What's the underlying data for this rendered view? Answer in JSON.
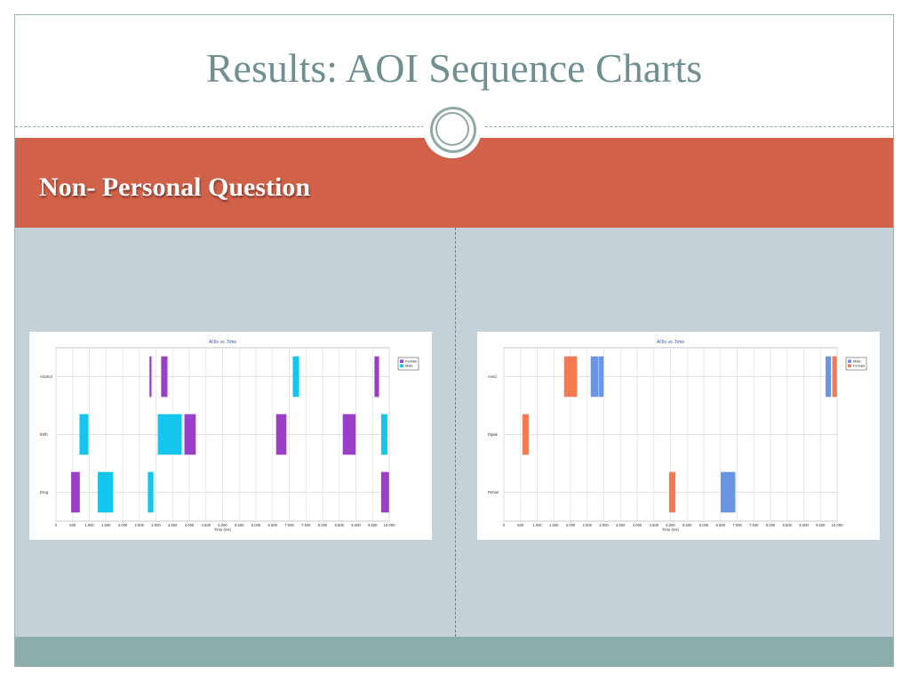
{
  "slide": {
    "title": "Results: AOI Sequence Charts",
    "section": "Non- Personal Question"
  },
  "colors": {
    "banner": "#d2614a",
    "title": "#6f8f92",
    "content_bg": "#c5d1d9",
    "footer": "#8badab",
    "Female_left": "#9b3fc8",
    "Male_left": "#14c6ee",
    "Male_right": "#6a95e3",
    "Female_right": "#f47a52"
  },
  "chart_data": [
    {
      "type": "bar",
      "title": "AOIs vs. Time",
      "xlabel": "Time (ms)",
      "ylabel": "",
      "xlim": [
        0,
        10000
      ],
      "xticks": [
        "0",
        "500",
        "1,000",
        "1,500",
        "2,000",
        "2,500",
        "3,000",
        "3,500",
        "4,000",
        "4,500",
        "5,000",
        "5,500",
        "6,000",
        "6,500",
        "7,000",
        "7,500",
        "8,000",
        "8,500",
        "9,000",
        "9,500",
        "10,000"
      ],
      "categories": [
        "Alcohol",
        "Birth",
        "Drug"
      ],
      "legend": {
        "position": "top-right",
        "entries": [
          "Female",
          "Male"
        ]
      },
      "grid": true,
      "series": [
        {
          "name": "Female",
          "color": "#9b3fc8",
          "segments": [
            {
              "aoi": "Alcohol",
              "start": 2800,
              "end": 2870
            },
            {
              "aoi": "Alcohol",
              "start": 3150,
              "end": 3350
            },
            {
              "aoi": "Alcohol",
              "start": 9550,
              "end": 9700
            },
            {
              "aoi": "Birth",
              "start": 3850,
              "end": 4200
            },
            {
              "aoi": "Birth",
              "start": 6600,
              "end": 6920
            },
            {
              "aoi": "Birth",
              "start": 8600,
              "end": 9000
            },
            {
              "aoi": "Drug",
              "start": 450,
              "end": 720
            },
            {
              "aoi": "Drug",
              "start": 9750,
              "end": 10000
            }
          ]
        },
        {
          "name": "Male",
          "color": "#14c6ee",
          "segments": [
            {
              "aoi": "Alcohol",
              "start": 7100,
              "end": 7300
            },
            {
              "aoi": "Birth",
              "start": 700,
              "end": 980
            },
            {
              "aoi": "Birth",
              "start": 3050,
              "end": 3780
            },
            {
              "aoi": "Birth",
              "start": 9750,
              "end": 9950
            },
            {
              "aoi": "Drug",
              "start": 1250,
              "end": 1720
            },
            {
              "aoi": "Drug",
              "start": 2750,
              "end": 2930
            }
          ]
        }
      ]
    },
    {
      "type": "bar",
      "title": "AOIs vs. Time",
      "xlabel": "Time (ms)",
      "ylabel": "",
      "xlim": [
        0,
        10000
      ],
      "xticks": [
        "0",
        "500",
        "1,000",
        "1,500",
        "2,000",
        "2,500",
        "3,000",
        "3,500",
        "4,000",
        "4,500",
        "5,000",
        "5,500",
        "6,000",
        "6,500",
        "7,000",
        "7,500",
        "8,000",
        "8,500",
        "9,000",
        "9,500",
        "10,000"
      ],
      "categories": [
        "Amid",
        "Dipak",
        "Rohan"
      ],
      "legend": {
        "position": "top-right",
        "entries": [
          "Male",
          "Female"
        ]
      },
      "grid": true,
      "series": [
        {
          "name": "Male",
          "color": "#6a95e3",
          "segments": [
            {
              "aoi": "Amid",
              "start": 2600,
              "end": 2850
            },
            {
              "aoi": "Amid",
              "start": 2850,
              "end": 3000
            },
            {
              "aoi": "Amid",
              "start": 9650,
              "end": 9820
            },
            {
              "aoi": "Rohan",
              "start": 6500,
              "end": 6950
            }
          ]
        },
        {
          "name": "Female",
          "color": "#f47a52",
          "segments": [
            {
              "aoi": "Amid",
              "start": 1800,
              "end": 2200
            },
            {
              "aoi": "Amid",
              "start": 9850,
              "end": 10000
            },
            {
              "aoi": "Dipak",
              "start": 550,
              "end": 750
            },
            {
              "aoi": "Rohan",
              "start": 4950,
              "end": 5150
            }
          ]
        }
      ]
    }
  ]
}
